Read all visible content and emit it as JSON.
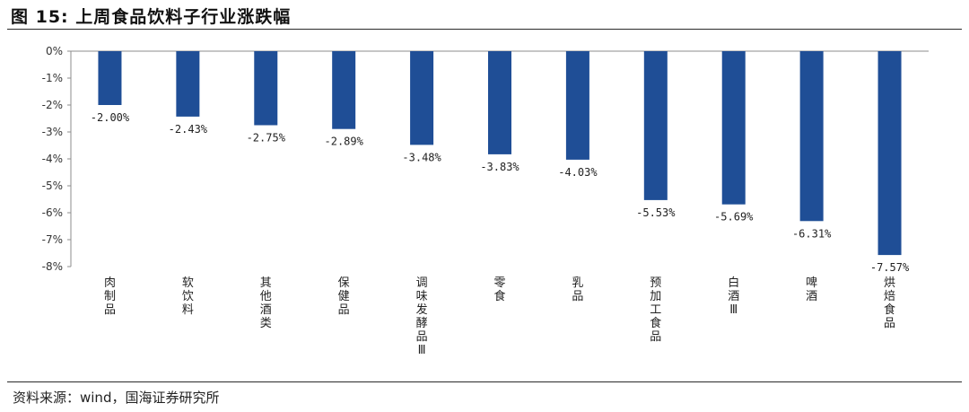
{
  "header": {
    "title": "图 15:  上周食品饮料子行业涨跌幅"
  },
  "footer": {
    "source": "资料来源：wind，国海证券研究所"
  },
  "chart_data": {
    "type": "bar",
    "title": "",
    "xlabel": "",
    "ylabel": "",
    "ylim": [
      -8,
      0
    ],
    "yticks": [
      "0%",
      "-1%",
      "-2%",
      "-3%",
      "-4%",
      "-5%",
      "-6%",
      "-7%",
      "-8%"
    ],
    "categories": [
      "肉制品",
      "软饮料",
      "其他酒类",
      "保健品",
      "调味发酵品Ⅲ",
      "零食",
      "乳品",
      "预加工食品",
      "白酒Ⅲ",
      "啤酒",
      "烘焙食品"
    ],
    "values": [
      -2.0,
      -2.43,
      -2.75,
      -2.89,
      -3.48,
      -3.83,
      -4.03,
      -5.53,
      -5.69,
      -6.31,
      -7.57
    ],
    "data_labels": [
      "-2.00%",
      "-2.43%",
      "-2.75%",
      "-2.89%",
      "-3.48%",
      "-3.83%",
      "-4.03%",
      "-5.53%",
      "-5.69%",
      "-6.31%",
      "-7.57%"
    ],
    "bar_color": "#1f4e96",
    "grid": false,
    "legend": "none"
  }
}
